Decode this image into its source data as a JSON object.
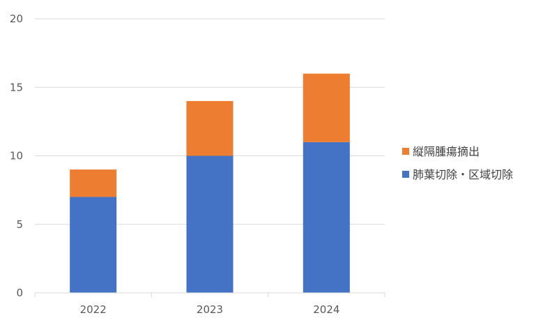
{
  "chart_data": {
    "type": "bar",
    "stacked": true,
    "categories": [
      "2022",
      "2023",
      "2024"
    ],
    "series": [
      {
        "name": "肺葉切除・区域切除",
        "values": [
          7,
          10,
          11
        ],
        "color": "#4472C4"
      },
      {
        "name": "縦隔腫瘍摘出",
        "values": [
          2,
          4,
          5
        ],
        "color": "#ED7D31"
      }
    ],
    "ylim": [
      0,
      20
    ],
    "yticks": [
      0,
      5,
      10,
      15,
      20
    ],
    "grid": true,
    "legend_position": "right",
    "legend_order": [
      "縦隔腫瘍摘出",
      "肺葉切除・区域切除"
    ]
  }
}
